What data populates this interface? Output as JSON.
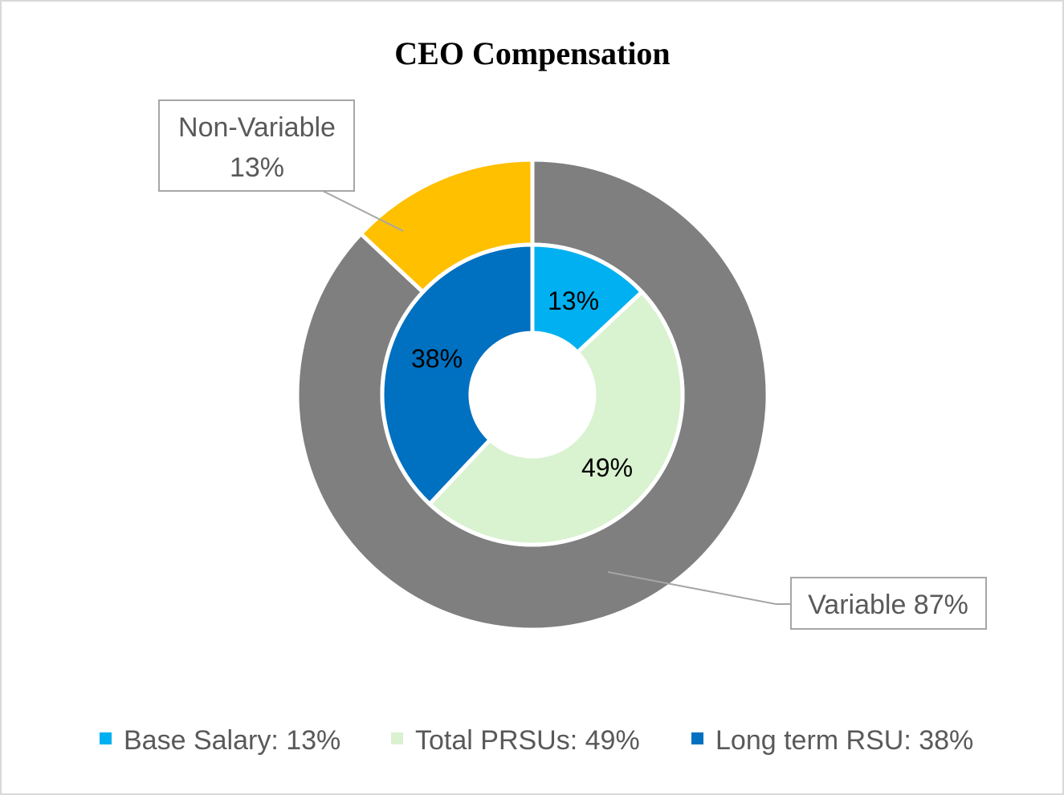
{
  "chart_data": {
    "type": "pie",
    "title": "CEO Compensation",
    "outer_ring": {
      "slices": [
        {
          "label": "Variable",
          "value": 87,
          "color": "#7f7f7f",
          "display": "Variable 87%"
        },
        {
          "label": "Non-Variable",
          "value": 13,
          "color": "#ffc000",
          "display_line1": "Non-Variable",
          "display_line2": "13%"
        }
      ]
    },
    "inner_ring": {
      "slices": [
        {
          "label": "Base Salary",
          "value": 13,
          "color": "#00b0f0",
          "display": "13%"
        },
        {
          "label": "Total PRSUs",
          "value": 49,
          "color": "#d9f2d0",
          "display": "49%"
        },
        {
          "label": "Long term RSU",
          "value": 38,
          "color": "#0070c0",
          "display": "38%"
        }
      ]
    },
    "legend": {
      "position": "bottom",
      "entries": [
        {
          "text": "Base Salary: 13%",
          "color": "#00b0f0"
        },
        {
          "text": "Total PRSUs: 49%",
          "color": "#d9f2d0"
        },
        {
          "text": "Long term RSU: 38%",
          "color": "#0070c0"
        }
      ]
    }
  }
}
